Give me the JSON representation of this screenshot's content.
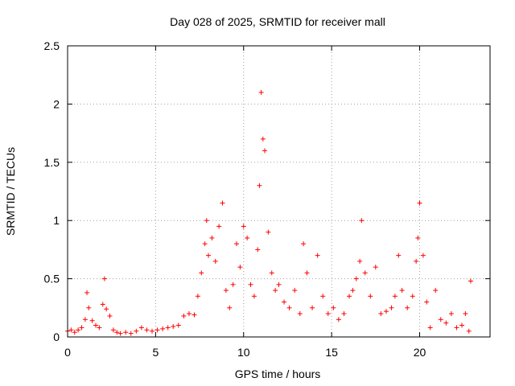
{
  "chart_data": {
    "type": "scatter",
    "title": "Day 028 of 2025, SRMTID for receiver mall",
    "xlabel": "GPS time / hours",
    "ylabel": "SRMTID / TECUs",
    "xlim": [
      0,
      24
    ],
    "ylim": [
      0,
      2.5
    ],
    "xticks": [
      0,
      5,
      10,
      15,
      20
    ],
    "xtick_labels": [
      "0",
      "5",
      "10",
      "15",
      "20"
    ],
    "yticks": [
      0,
      0.5,
      1,
      1.5,
      2,
      2.5
    ],
    "ytick_labels": [
      "0",
      "0.5",
      "1",
      "1.5",
      "2",
      "2.5"
    ],
    "grid": true,
    "marker": "+",
    "color": "#ff0000",
    "series": [
      {
        "name": "SRMTID",
        "x": [
          0.0,
          0.2,
          0.4,
          0.6,
          0.8,
          1.0,
          1.1,
          1.2,
          1.4,
          1.6,
          1.8,
          2.0,
          2.1,
          2.2,
          2.4,
          2.6,
          2.8,
          3.0,
          3.3,
          3.6,
          3.9,
          4.2,
          4.5,
          4.8,
          5.1,
          5.4,
          5.7,
          6.0,
          6.3,
          6.6,
          6.9,
          7.2,
          7.4,
          7.6,
          7.8,
          7.9,
          8.0,
          8.2,
          8.4,
          8.6,
          8.8,
          9.0,
          9.2,
          9.4,
          9.6,
          9.8,
          10.0,
          10.2,
          10.4,
          10.6,
          10.8,
          10.9,
          11.0,
          11.1,
          11.2,
          11.4,
          11.6,
          11.8,
          12.0,
          12.3,
          12.6,
          12.9,
          13.2,
          13.4,
          13.6,
          13.9,
          14.2,
          14.5,
          14.8,
          15.1,
          15.4,
          15.7,
          16.0,
          16.2,
          16.4,
          16.6,
          16.7,
          16.9,
          17.2,
          17.5,
          17.8,
          18.1,
          18.4,
          18.6,
          18.8,
          19.0,
          19.3,
          19.6,
          19.8,
          19.9,
          20.0,
          20.2,
          20.4,
          20.6,
          20.9,
          21.2,
          21.5,
          21.8,
          22.1,
          22.4,
          22.6,
          22.8,
          22.9
        ],
        "y": [
          0.05,
          0.06,
          0.04,
          0.06,
          0.08,
          0.15,
          0.38,
          0.25,
          0.14,
          0.1,
          0.08,
          0.28,
          0.5,
          0.24,
          0.18,
          0.06,
          0.04,
          0.03,
          0.04,
          0.03,
          0.05,
          0.08,
          0.06,
          0.05,
          0.06,
          0.07,
          0.08,
          0.09,
          0.1,
          0.18,
          0.2,
          0.19,
          0.35,
          0.55,
          0.8,
          1.0,
          0.7,
          0.85,
          0.65,
          0.95,
          1.15,
          0.4,
          0.25,
          0.45,
          0.8,
          0.6,
          0.95,
          0.85,
          0.45,
          0.35,
          0.75,
          1.3,
          2.1,
          1.7,
          1.6,
          0.9,
          0.55,
          0.4,
          0.45,
          0.3,
          0.25,
          0.4,
          0.2,
          0.8,
          0.55,
          0.25,
          0.7,
          0.35,
          0.2,
          0.25,
          0.15,
          0.2,
          0.35,
          0.4,
          0.5,
          0.65,
          1.0,
          0.55,
          0.35,
          0.6,
          0.2,
          0.22,
          0.25,
          0.35,
          0.7,
          0.4,
          0.25,
          0.35,
          0.65,
          0.85,
          1.15,
          0.7,
          0.3,
          0.08,
          0.4,
          0.15,
          0.12,
          0.2,
          0.08,
          0.1,
          0.2,
          0.05,
          0.48
        ]
      }
    ]
  }
}
